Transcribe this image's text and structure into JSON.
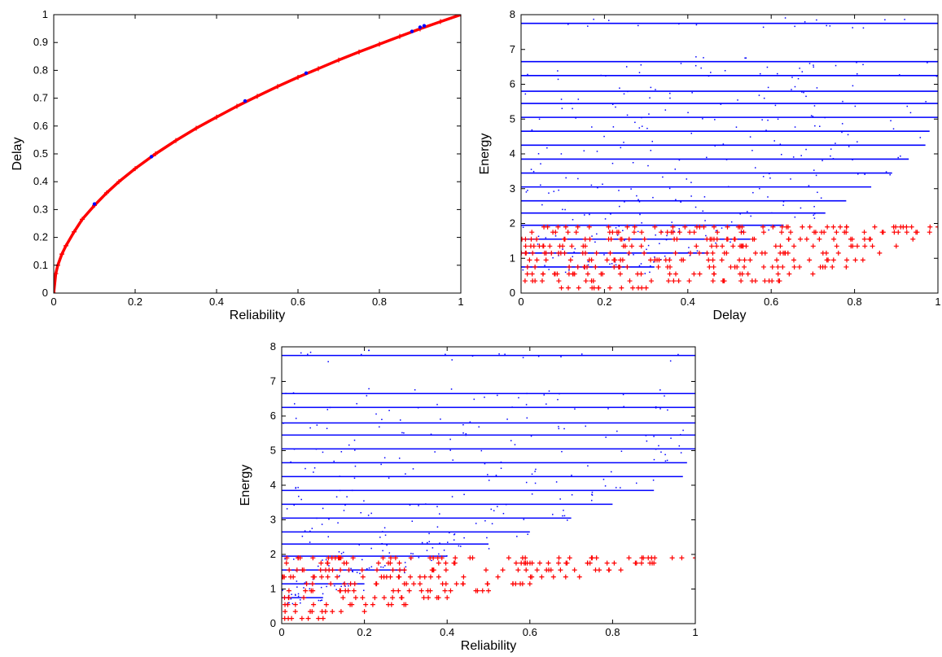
{
  "chart_data": [
    {
      "type": "line",
      "xlabel": "Reliability",
      "ylabel": "Delay",
      "xlim": [
        0,
        1
      ],
      "ylim": [
        0,
        1
      ],
      "xticks": [
        "0",
        "0.2",
        "0.4",
        "0.6",
        "0.8",
        "1"
      ],
      "yticks": [
        "0",
        "0.1",
        "0.2",
        "0.3",
        "0.4",
        "0.5",
        "0.6",
        "0.7",
        "0.8",
        "0.9",
        "1"
      ],
      "grid": false,
      "series": [
        {
          "color": "#ff0000",
          "marker": "+",
          "x": [
            0,
            0.005,
            0.01,
            0.02,
            0.03,
            0.05,
            0.07,
            0.1,
            0.13,
            0.16,
            0.2,
            0.25,
            0.3,
            0.35,
            0.4,
            0.45,
            0.5,
            0.55,
            0.6,
            0.65,
            0.7,
            0.75,
            0.8,
            0.85,
            0.9,
            0.95,
            1
          ],
          "y": [
            0,
            0.07,
            0.1,
            0.14,
            0.17,
            0.22,
            0.265,
            0.315,
            0.36,
            0.4,
            0.447,
            0.5,
            0.548,
            0.592,
            0.632,
            0.671,
            0.707,
            0.742,
            0.775,
            0.806,
            0.837,
            0.866,
            0.894,
            0.922,
            0.949,
            0.975,
            1
          ]
        },
        {
          "color": "#0000ff",
          "marker": ".",
          "x": [
            0.1,
            0.24,
            0.47,
            0.62,
            0.88,
            0.9,
            0.91
          ],
          "y": [
            0.32,
            0.49,
            0.69,
            0.79,
            0.94,
            0.955,
            0.96
          ]
        }
      ]
    },
    {
      "type": "scatter",
      "xlabel": "Delay",
      "ylabel": "Energy",
      "xlim": [
        0,
        1
      ],
      "ylim": [
        0,
        8
      ],
      "xticks": [
        "0",
        "0.2",
        "0.4",
        "0.6",
        "0.8",
        "1"
      ],
      "yticks": [
        "0",
        "1",
        "2",
        "3",
        "4",
        "5",
        "6",
        "7",
        "8"
      ],
      "grid": false,
      "series": [
        {
          "color": "#0000ff",
          "marker": "-",
          "y": [
            7.75,
            6.65,
            6.25,
            5.8,
            5.45,
            5.05,
            4.65,
            4.25,
            3.85,
            3.45,
            3.05,
            2.65,
            2.3,
            1.95,
            1.55,
            1.15,
            0.75
          ],
          "xmax": [
            1.0,
            1.0,
            1.0,
            1.0,
            1.0,
            1.0,
            0.98,
            0.97,
            0.93,
            0.89,
            0.84,
            0.78,
            0.73,
            0.63,
            0.55,
            0.45,
            0.32
          ]
        },
        {
          "color": "#ff0000",
          "marker": "+",
          "y": [
            1.9,
            1.75,
            1.55,
            1.35,
            1.15,
            0.95,
            0.75,
            0.55,
            0.35,
            0.15
          ],
          "xmax": [
            1.0,
            0.98,
            0.94,
            0.9,
            0.86,
            0.82,
            0.78,
            0.7,
            0.62,
            0.3
          ]
        }
      ]
    },
    {
      "type": "scatter",
      "xlabel": "Reliability",
      "ylabel": "Energy",
      "xlim": [
        0,
        1
      ],
      "ylim": [
        0,
        8
      ],
      "xticks": [
        "0",
        "0.2",
        "0.4",
        "0.6",
        "0.8",
        "1"
      ],
      "yticks": [
        "0",
        "1",
        "2",
        "3",
        "4",
        "5",
        "6",
        "7",
        "8"
      ],
      "grid": false,
      "series": [
        {
          "color": "#0000ff",
          "marker": "-",
          "y": [
            7.75,
            6.65,
            6.25,
            5.8,
            5.45,
            5.05,
            4.65,
            4.25,
            3.85,
            3.45,
            3.05,
            2.65,
            2.3,
            1.95,
            1.55,
            1.15,
            0.75
          ],
          "xmax": [
            1.0,
            1.0,
            1.0,
            1.0,
            1.0,
            1.0,
            0.98,
            0.97,
            0.9,
            0.8,
            0.7,
            0.6,
            0.5,
            0.4,
            0.3,
            0.2,
            0.1
          ]
        },
        {
          "color": "#ff0000",
          "marker": "+",
          "y": [
            1.9,
            1.75,
            1.55,
            1.35,
            1.15,
            0.95,
            0.75,
            0.55,
            0.35,
            0.15
          ],
          "xmax": [
            1.0,
            0.9,
            0.82,
            0.72,
            0.6,
            0.5,
            0.4,
            0.3,
            0.2,
            0.1
          ]
        }
      ]
    }
  ]
}
